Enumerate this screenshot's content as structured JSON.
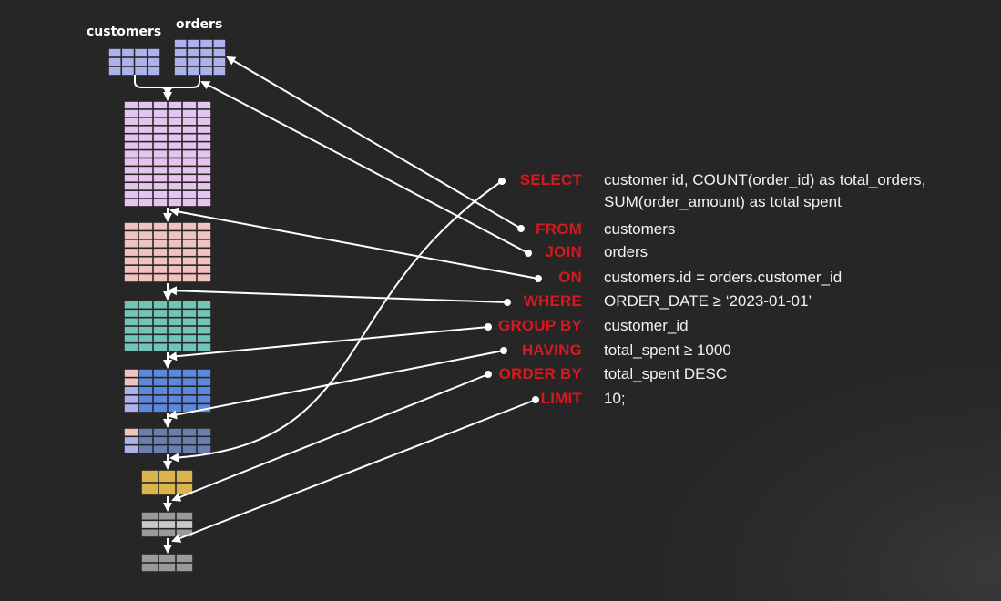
{
  "tables": {
    "customers_label": "customers",
    "orders_label": "orders"
  },
  "colors": {
    "background": "#262626",
    "keyword": "#d8181f",
    "text": "#f2f2f2",
    "arrow": "#ffffff",
    "customers": "#aeb2ec",
    "orders": "#aeb2ec",
    "joined": "#e6c4f0",
    "filtered_on": "#f0c3c0",
    "filtered_where": "#72c4b8",
    "grouped": "#5b87dc",
    "having": "#6a7fb0",
    "ordered": "#d9b54c",
    "limited_light": "#b8b8b8",
    "limited": "#9a9a9a"
  },
  "query": [
    {
      "keyword": "SELECT",
      "lines": [
        "customer id, COUNT(order_id) as total_orders,",
        "SUM(order_amount) as total spent"
      ]
    },
    {
      "keyword": "FROM",
      "lines": [
        "customers"
      ]
    },
    {
      "keyword": "JOIN",
      "lines": [
        "orders"
      ]
    },
    {
      "keyword": "ON",
      "lines": [
        "customers.id = orders.customer_id"
      ]
    },
    {
      "keyword": "WHERE",
      "lines": [
        "ORDER_DATE ≥ ‘2023-01-01’"
      ]
    },
    {
      "keyword": "GROUP BY",
      "lines": [
        "customer_id"
      ]
    },
    {
      "keyword": "HAVING",
      "lines": [
        "total_spent ≥ 1000"
      ]
    },
    {
      "keyword": "ORDER BY",
      "lines": [
        "total_spent DESC"
      ]
    },
    {
      "keyword": "LIMIT",
      "lines": [
        "10;"
      ]
    }
  ]
}
